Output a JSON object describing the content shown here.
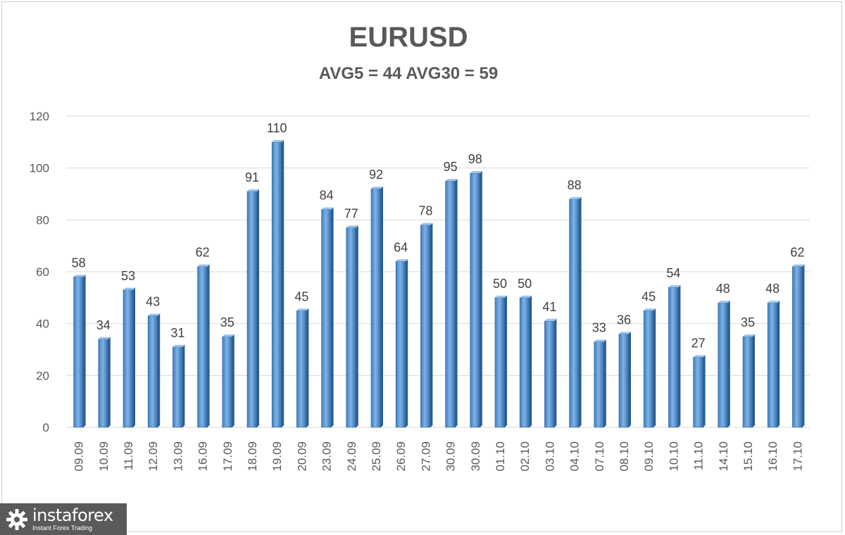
{
  "chart_data": {
    "type": "bar",
    "title": "EURUSD",
    "subtitle": "AVG5 = 44 AVG30 = 59",
    "categories": [
      "09.09",
      "10.09",
      "11.09",
      "12.09",
      "13.09",
      "16.09",
      "17.09",
      "18.09",
      "19.09",
      "20.09",
      "23.09",
      "24.09",
      "25.09",
      "26.09",
      "27.09",
      "30.09",
      "30.09",
      "01.10",
      "02.10",
      "03.10",
      "04.10",
      "07.10",
      "08.10",
      "09.10",
      "10.10",
      "11.10",
      "14.10",
      "15.10",
      "16.10",
      "17.10"
    ],
    "values": [
      58,
      34,
      53,
      43,
      31,
      62,
      35,
      91,
      110,
      45,
      84,
      77,
      92,
      64,
      78,
      95,
      98,
      50,
      50,
      41,
      88,
      33,
      36,
      45,
      54,
      27,
      48,
      35,
      48,
      62
    ],
    "ylim": [
      0,
      120
    ],
    "yticks": [
      0,
      20,
      40,
      60,
      80,
      100,
      120
    ],
    "grid": true,
    "bar_color": "#5b9bd5",
    "data_labels": true
  },
  "watermark": {
    "name": "instaforex",
    "tagline": "Instant Forex Trading"
  }
}
